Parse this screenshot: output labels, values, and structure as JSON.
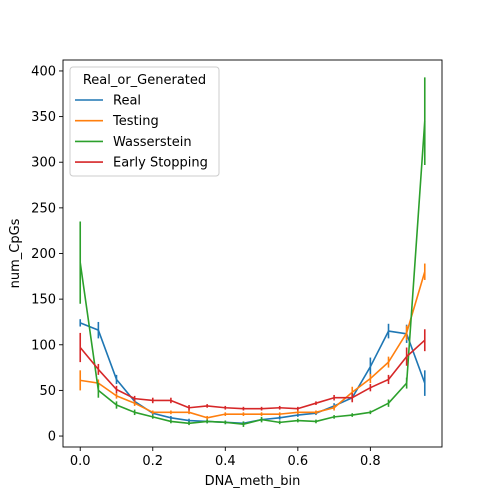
{
  "chart_data": {
    "type": "line",
    "title": "",
    "xlabel": "DNA_meth_bin",
    "ylabel": "num_CpGs",
    "xlim": [
      -0.0475,
      0.9975
    ],
    "ylim": [
      -12,
      412
    ],
    "xticks": [
      0.0,
      0.2,
      0.4,
      0.6,
      0.8
    ],
    "xtick_labels": [
      "0.0",
      "0.2",
      "0.4",
      "0.6",
      "0.8"
    ],
    "yticks": [
      0,
      50,
      100,
      150,
      200,
      250,
      300,
      350,
      400
    ],
    "ytick_labels": [
      "0",
      "50",
      "100",
      "150",
      "200",
      "250",
      "300",
      "350",
      "400"
    ],
    "legend": {
      "title": "Real_or_Generated",
      "position": "upper-left"
    },
    "x": [
      0.0,
      0.05,
      0.1,
      0.15,
      0.2,
      0.25,
      0.3,
      0.35,
      0.4,
      0.45,
      0.5,
      0.55,
      0.6,
      0.65,
      0.7,
      0.75,
      0.8,
      0.85,
      0.9,
      0.95
    ],
    "series": [
      {
        "name": "Real",
        "color": "#1f77b4",
        "values": [
          124,
          116,
          62,
          38,
          25,
          20,
          17,
          16,
          15,
          14,
          18,
          20,
          23,
          25,
          33,
          42,
          76,
          115,
          112,
          58
        ],
        "err": [
          4,
          9,
          5,
          3,
          2,
          2,
          2,
          2,
          2,
          2,
          2,
          2,
          2,
          2,
          3,
          4,
          10,
          8,
          10,
          14
        ]
      },
      {
        "name": "Testing",
        "color": "#ff7f0e",
        "values": [
          61,
          58,
          44,
          36,
          26,
          26,
          26,
          20,
          24,
          24,
          24,
          24,
          26,
          26,
          31,
          48,
          63,
          81,
          113,
          180
        ],
        "err": [
          11,
          4,
          3,
          3,
          2,
          2,
          2,
          2,
          2,
          2,
          2,
          2,
          2,
          2,
          3,
          6,
          5,
          6,
          8,
          9
        ]
      },
      {
        "name": "Wasserstein",
        "color": "#2ca02c",
        "values": [
          190,
          50,
          34,
          26,
          21,
          16,
          14,
          16,
          15,
          13,
          18,
          15,
          17,
          16,
          21,
          23,
          26,
          36,
          58,
          345
        ],
        "err": [
          45,
          8,
          4,
          3,
          2,
          2,
          2,
          2,
          2,
          3,
          3,
          2,
          2,
          2,
          2,
          2,
          2,
          4,
          6,
          48
        ]
      },
      {
        "name": "Early Stopping",
        "color": "#d62728",
        "values": [
          97,
          73,
          51,
          41,
          39,
          39,
          31,
          33,
          31,
          30,
          30,
          31,
          30,
          36,
          42,
          42,
          53,
          62,
          87,
          105
        ],
        "err": [
          16,
          6,
          4,
          3,
          3,
          3,
          3,
          2,
          2,
          2,
          2,
          2,
          2,
          2,
          3,
          5,
          4,
          5,
          10,
          12
        ]
      }
    ]
  }
}
